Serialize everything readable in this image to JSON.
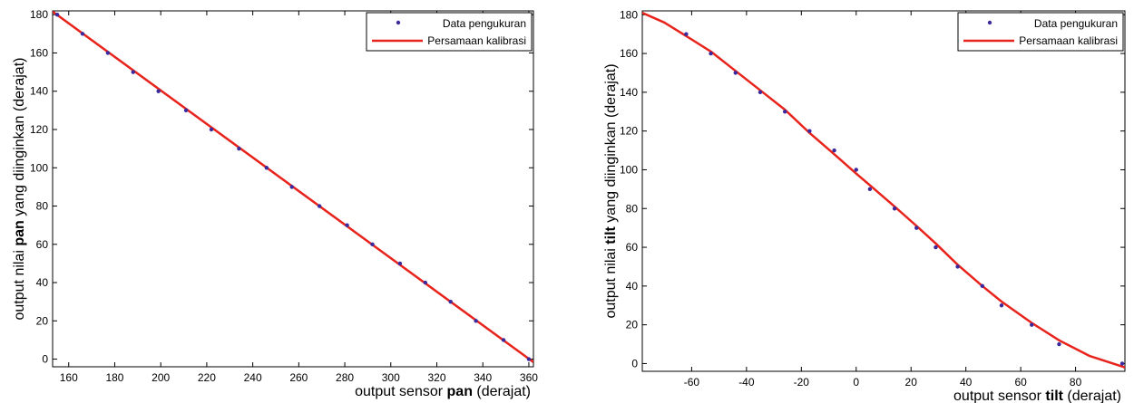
{
  "chart_data": [
    {
      "type": "scatter",
      "xlabel": {
        "pre": "output sensor ",
        "bold": "pan",
        "post": " (derajat)"
      },
      "ylabel": {
        "pre": "output nilai ",
        "bold": "pan",
        "post": " yang diinginkan (derajat)"
      },
      "xlim": [
        153,
        362
      ],
      "ylim": [
        -4,
        182
      ],
      "xticks": [
        160,
        180,
        200,
        220,
        240,
        260,
        280,
        300,
        320,
        340,
        360
      ],
      "yticks": [
        0,
        20,
        40,
        60,
        80,
        100,
        120,
        140,
        160,
        180
      ],
      "grid": false,
      "legend_position": "top-right",
      "series": [
        {
          "name": "Data pengukuran",
          "kind": "markers",
          "color": "#3a2a9e",
          "x": [
            155,
            166,
            177,
            188,
            199,
            211,
            222,
            234,
            246,
            257,
            269,
            281,
            292,
            304,
            315,
            326,
            337,
            349,
            360
          ],
          "y": [
            180,
            170,
            160,
            150,
            140,
            130,
            120,
            110,
            100,
            90,
            80,
            70,
            60,
            50,
            40,
            30,
            20,
            10,
            0
          ]
        },
        {
          "name": "Persamaan kalibrasi",
          "kind": "line",
          "color": "#e8231c",
          "x": [
            153,
            362
          ],
          "y": [
            181.6,
            -1.6
          ]
        }
      ]
    },
    {
      "type": "scatter",
      "xlabel": {
        "pre": "output sensor ",
        "bold": "tilt",
        "post": " (derajat)"
      },
      "ylabel": {
        "pre": "output nilai ",
        "bold": "tilt",
        "post": " yang diinginkan (derajat)"
      },
      "xlim": [
        -78,
        98
      ],
      "ylim": [
        -4,
        182
      ],
      "xticks": [
        -60,
        -40,
        -20,
        0,
        20,
        40,
        60,
        80
      ],
      "yticks": [
        0,
        20,
        40,
        60,
        80,
        100,
        120,
        140,
        160,
        180
      ],
      "grid": false,
      "legend_position": "top-right",
      "series": [
        {
          "name": "Data pengukuran",
          "kind": "markers",
          "color": "#3a2a9e",
          "x": [
            -62,
            -53,
            -44,
            -35,
            -26,
            -17,
            -8,
            0,
            5,
            14,
            22,
            29,
            37,
            46,
            53,
            64,
            74,
            97
          ],
          "y": [
            170,
            160,
            150,
            140,
            130,
            120,
            110,
            100,
            90,
            80,
            70,
            60,
            50,
            40,
            30,
            20,
            10,
            0
          ]
        },
        {
          "name": "Persamaan kalibrasi",
          "kind": "line",
          "color": "#e8231c",
          "x": [
            -78,
            -70,
            -62,
            -53,
            -44,
            -35,
            -26,
            -17,
            -8,
            0,
            5,
            14,
            22,
            29,
            37,
            46,
            53,
            64,
            74,
            85,
            98
          ],
          "y": [
            181,
            176,
            169,
            161,
            151,
            141,
            131,
            119,
            108,
            98,
            92,
            81,
            71,
            62,
            51,
            40,
            32,
            21,
            12,
            4,
            -2
          ]
        }
      ]
    }
  ]
}
